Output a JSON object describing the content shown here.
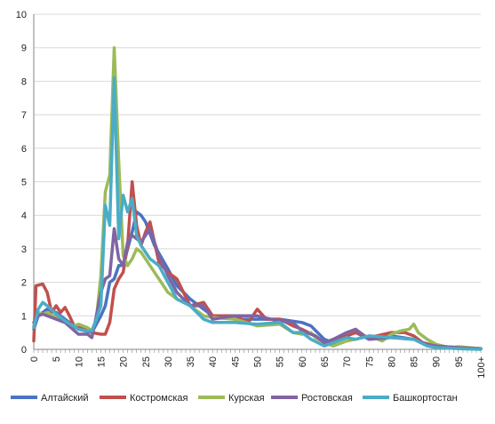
{
  "chart_data": {
    "type": "line",
    "title": "",
    "xlabel": "",
    "ylabel": "",
    "ylim": [
      0,
      10
    ],
    "yticks": [
      0,
      1,
      2,
      3,
      4,
      5,
      6,
      7,
      8,
      9,
      10
    ],
    "xlim": [
      0,
      100
    ],
    "xticks": [
      {
        "value": 0,
        "label": "0"
      },
      {
        "value": 5,
        "label": "5"
      },
      {
        "value": 10,
        "label": "10"
      },
      {
        "value": 15,
        "label": "15"
      },
      {
        "value": 20,
        "label": "20"
      },
      {
        "value": 25,
        "label": "25"
      },
      {
        "value": 30,
        "label": "30"
      },
      {
        "value": 35,
        "label": "35"
      },
      {
        "value": 40,
        "label": "40"
      },
      {
        "value": 45,
        "label": "45"
      },
      {
        "value": 50,
        "label": "50"
      },
      {
        "value": 55,
        "label": "55"
      },
      {
        "value": 60,
        "label": "60"
      },
      {
        "value": 65,
        "label": "65"
      },
      {
        "value": 70,
        "label": "70"
      },
      {
        "value": 75,
        "label": "75"
      },
      {
        "value": 80,
        "label": "80"
      },
      {
        "value": 85,
        "label": "85"
      },
      {
        "value": 90,
        "label": "90"
      },
      {
        "value": 95,
        "label": "95"
      },
      {
        "value": 100,
        "label": "100+"
      }
    ],
    "grid": "horizontal",
    "legend": "bottom",
    "series": [
      {
        "name": "Алтайский",
        "color": "#4a73c4",
        "points": [
          [
            0,
            0.6
          ],
          [
            1,
            1.0
          ],
          [
            2,
            1.1
          ],
          [
            3,
            1.2
          ],
          [
            5,
            1.1
          ],
          [
            7,
            0.9
          ],
          [
            10,
            0.6
          ],
          [
            13,
            0.5
          ],
          [
            15,
            1.0
          ],
          [
            16,
            1.3
          ],
          [
            17,
            2.0
          ],
          [
            18,
            2.1
          ],
          [
            19,
            2.5
          ],
          [
            20,
            2.5
          ],
          [
            21,
            3.0
          ],
          [
            22,
            3.5
          ],
          [
            23,
            4.1
          ],
          [
            24,
            4.0
          ],
          [
            25,
            3.8
          ],
          [
            27,
            3.1
          ],
          [
            30,
            2.4
          ],
          [
            32,
            1.9
          ],
          [
            35,
            1.5
          ],
          [
            38,
            1.2
          ],
          [
            40,
            1.0
          ],
          [
            45,
            0.9
          ],
          [
            50,
            0.9
          ],
          [
            55,
            0.9
          ],
          [
            60,
            0.8
          ],
          [
            62,
            0.7
          ],
          [
            65,
            0.3
          ],
          [
            67,
            0.2
          ],
          [
            70,
            0.4
          ],
          [
            72,
            0.5
          ],
          [
            75,
            0.3
          ],
          [
            80,
            0.4
          ],
          [
            85,
            0.3
          ],
          [
            88,
            0.15
          ],
          [
            90,
            0.1
          ],
          [
            95,
            0.05
          ],
          [
            100,
            0.02
          ]
        ]
      },
      {
        "name": "Костромская",
        "color": "#c0504d",
        "points": [
          [
            0,
            0.25
          ],
          [
            0.5,
            1.9
          ],
          [
            2,
            1.95
          ],
          [
            3,
            1.7
          ],
          [
            4,
            1.1
          ],
          [
            5,
            1.3
          ],
          [
            6,
            1.1
          ],
          [
            7,
            1.25
          ],
          [
            8,
            1.0
          ],
          [
            9,
            0.7
          ],
          [
            10,
            0.65
          ],
          [
            12,
            0.6
          ],
          [
            13,
            0.5
          ],
          [
            15,
            0.45
          ],
          [
            16,
            0.45
          ],
          [
            17,
            0.8
          ],
          [
            18,
            1.8
          ],
          [
            19,
            2.1
          ],
          [
            20,
            2.3
          ],
          [
            21,
            3.1
          ],
          [
            22,
            5.0
          ],
          [
            23,
            3.7
          ],
          [
            24,
            3.1
          ],
          [
            25,
            3.5
          ],
          [
            26,
            3.8
          ],
          [
            28,
            2.6
          ],
          [
            30,
            2.3
          ],
          [
            32,
            2.1
          ],
          [
            35,
            1.3
          ],
          [
            38,
            1.4
          ],
          [
            40,
            1.0
          ],
          [
            45,
            1.0
          ],
          [
            48,
            0.8
          ],
          [
            50,
            1.2
          ],
          [
            52,
            0.9
          ],
          [
            55,
            0.9
          ],
          [
            58,
            0.7
          ],
          [
            60,
            0.6
          ],
          [
            63,
            0.4
          ],
          [
            65,
            0.2
          ],
          [
            67,
            0.25
          ],
          [
            70,
            0.4
          ],
          [
            72,
            0.5
          ],
          [
            75,
            0.35
          ],
          [
            80,
            0.5
          ],
          [
            83,
            0.5
          ],
          [
            85,
            0.4
          ],
          [
            87,
            0.2
          ],
          [
            90,
            0.1
          ],
          [
            95,
            0.05
          ],
          [
            100,
            0.02
          ]
        ]
      },
      {
        "name": "Курская",
        "color": "#9bbb59",
        "points": [
          [
            0,
            0.7
          ],
          [
            1,
            1.1
          ],
          [
            2,
            1.05
          ],
          [
            3,
            1.1
          ],
          [
            5,
            0.95
          ],
          [
            7,
            0.8
          ],
          [
            9,
            0.7
          ],
          [
            10,
            0.75
          ],
          [
            12,
            0.65
          ],
          [
            13,
            0.55
          ],
          [
            14,
            0.9
          ],
          [
            15,
            2.2
          ],
          [
            16,
            4.7
          ],
          [
            17,
            5.2
          ],
          [
            18,
            9.0
          ],
          [
            19,
            5.6
          ],
          [
            20,
            2.8
          ],
          [
            21,
            2.5
          ],
          [
            22,
            2.7
          ],
          [
            23,
            3.0
          ],
          [
            24,
            2.9
          ],
          [
            26,
            2.5
          ],
          [
            27,
            2.3
          ],
          [
            29,
            1.9
          ],
          [
            30,
            1.7
          ],
          [
            32,
            1.5
          ],
          [
            35,
            1.3
          ],
          [
            38,
            1.0
          ],
          [
            40,
            0.95
          ],
          [
            45,
            0.9
          ],
          [
            50,
            0.7
          ],
          [
            55,
            0.75
          ],
          [
            58,
            0.5
          ],
          [
            60,
            0.45
          ],
          [
            62,
            0.5
          ],
          [
            63,
            0.35
          ],
          [
            65,
            0.2
          ],
          [
            67,
            0.1
          ],
          [
            70,
            0.25
          ],
          [
            72,
            0.3
          ],
          [
            75,
            0.4
          ],
          [
            78,
            0.25
          ],
          [
            80,
            0.45
          ],
          [
            82,
            0.55
          ],
          [
            84,
            0.6
          ],
          [
            85,
            0.75
          ],
          [
            86,
            0.5
          ],
          [
            88,
            0.3
          ],
          [
            90,
            0.15
          ],
          [
            93,
            0.05
          ],
          [
            95,
            0.08
          ],
          [
            100,
            0.02
          ]
        ]
      },
      {
        "name": "Ростовская",
        "color": "#8064a2",
        "points": [
          [
            0,
            0.8
          ],
          [
            1,
            1.0
          ],
          [
            2,
            1.05
          ],
          [
            3,
            1.0
          ],
          [
            5,
            0.9
          ],
          [
            7,
            0.8
          ],
          [
            10,
            0.45
          ],
          [
            12,
            0.45
          ],
          [
            13,
            0.35
          ],
          [
            14,
            1.0
          ],
          [
            15,
            1.7
          ],
          [
            16,
            2.1
          ],
          [
            17,
            2.2
          ],
          [
            18,
            3.6
          ],
          [
            19,
            2.7
          ],
          [
            20,
            2.5
          ],
          [
            21,
            3.2
          ],
          [
            22,
            3.4
          ],
          [
            23,
            3.3
          ],
          [
            24,
            3.2
          ],
          [
            25,
            3.4
          ],
          [
            26,
            3.6
          ],
          [
            28,
            2.8
          ],
          [
            30,
            2.2
          ],
          [
            32,
            1.7
          ],
          [
            35,
            1.3
          ],
          [
            38,
            1.3
          ],
          [
            40,
            0.9
          ],
          [
            45,
            1.0
          ],
          [
            50,
            1.0
          ],
          [
            53,
            0.9
          ],
          [
            55,
            0.85
          ],
          [
            58,
            0.8
          ],
          [
            60,
            0.55
          ],
          [
            63,
            0.4
          ],
          [
            65,
            0.2
          ],
          [
            67,
            0.3
          ],
          [
            70,
            0.5
          ],
          [
            72,
            0.6
          ],
          [
            75,
            0.3
          ],
          [
            80,
            0.35
          ],
          [
            85,
            0.3
          ],
          [
            88,
            0.15
          ],
          [
            90,
            0.1
          ],
          [
            95,
            0.05
          ],
          [
            100,
            0.02
          ]
        ]
      },
      {
        "name": "Башкортостан",
        "color": "#4bacc6",
        "points": [
          [
            0,
            0.65
          ],
          [
            1,
            1.2
          ],
          [
            2,
            1.4
          ],
          [
            3,
            1.3
          ],
          [
            5,
            1.05
          ],
          [
            7,
            0.85
          ],
          [
            10,
            0.6
          ],
          [
            12,
            0.55
          ],
          [
            13,
            0.55
          ],
          [
            14,
            0.9
          ],
          [
            15,
            1.3
          ],
          [
            16,
            4.3
          ],
          [
            17,
            3.7
          ],
          [
            18,
            8.1
          ],
          [
            19,
            3.3
          ],
          [
            20,
            4.6
          ],
          [
            21,
            4.1
          ],
          [
            22,
            4.5
          ],
          [
            23,
            3.4
          ],
          [
            24,
            3.1
          ],
          [
            26,
            2.7
          ],
          [
            28,
            2.5
          ],
          [
            30,
            2.0
          ],
          [
            32,
            1.5
          ],
          [
            35,
            1.3
          ],
          [
            38,
            0.9
          ],
          [
            40,
            0.8
          ],
          [
            45,
            0.8
          ],
          [
            50,
            0.75
          ],
          [
            55,
            0.8
          ],
          [
            58,
            0.5
          ],
          [
            60,
            0.5
          ],
          [
            62,
            0.3
          ],
          [
            65,
            0.1
          ],
          [
            67,
            0.2
          ],
          [
            70,
            0.35
          ],
          [
            72,
            0.3
          ],
          [
            75,
            0.4
          ],
          [
            80,
            0.35
          ],
          [
            85,
            0.3
          ],
          [
            88,
            0.1
          ],
          [
            90,
            0.05
          ],
          [
            95,
            0.02
          ],
          [
            100,
            0.0
          ]
        ]
      }
    ]
  }
}
